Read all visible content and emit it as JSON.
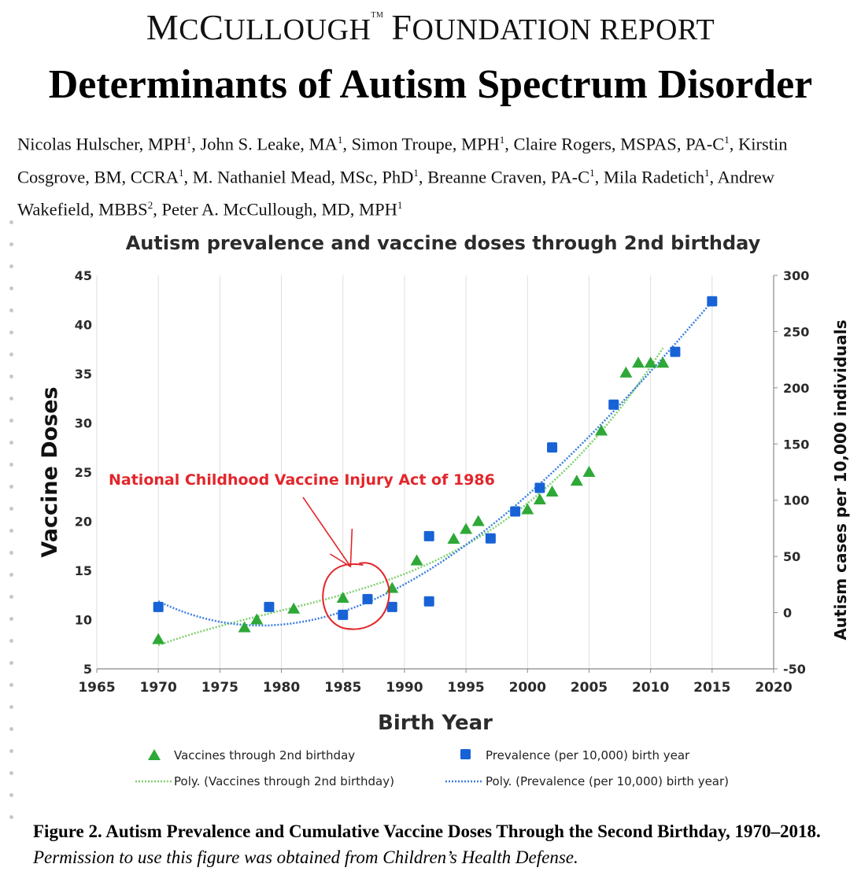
{
  "header": {
    "org_big_1": "M",
    "org_small_1": "C",
    "org_big_2": "C",
    "org_small_2": "ULLOUGH",
    "org_tm": "TM",
    "org_big_3": "F",
    "org_small_3": "OUNDATION REPORT",
    "title": "Determinants of Autism Spectrum Disorder"
  },
  "authors": [
    {
      "name": "Nicolas Hulscher, MPH",
      "sup": "1",
      "sep": ", "
    },
    {
      "name": "John S. Leake, MA",
      "sup": "1",
      "sep": ", "
    },
    {
      "name": "Simon Troupe, MPH",
      "sup": "1",
      "sep": ", "
    },
    {
      "name": "Claire Rogers, MSPAS, PA-C",
      "sup": "1",
      "sep": ", "
    },
    {
      "name": "Kirstin Cosgrove, BM, CCRA",
      "sup": "1",
      "sep": ", "
    },
    {
      "name": "M. Nathaniel Mead, MSc, PhD",
      "sup": "1",
      "sep": ", "
    },
    {
      "name": "Breanne Craven, PA-C",
      "sup": "1",
      "sep": ", "
    },
    {
      "name": "Mila Radetich",
      "sup": "1",
      "sep": ", "
    },
    {
      "name": "Andrew Wakefield, MBBS",
      "sup": "2",
      "sep": ", "
    },
    {
      "name": "Peter A. McCullough, MD, MPH",
      "sup": "1",
      "sep": ""
    }
  ],
  "caption": {
    "bold": "Figure 2. Autism Prevalence and Cumulative Vaccine Doses Through the Second Birthday, 1970–2018",
    "period": ". ",
    "italic": "Permission to use this figure was obtained from Children’s Health Defense."
  },
  "chart_data": {
    "type": "scatter",
    "title": "Autism prevalence and vaccine doses through 2nd birthday",
    "xlabel": "Birth Year",
    "ylabel_left": "Vaccine Doses",
    "ylabel_right": "Autism cases per 10,000 individuals",
    "xlim": [
      1965,
      2020
    ],
    "xticks": [
      1965,
      1970,
      1975,
      1980,
      1985,
      1990,
      1995,
      2000,
      2005,
      2010,
      2015,
      2020
    ],
    "ylim_left": [
      5,
      45
    ],
    "yticks_left": [
      5,
      10,
      15,
      20,
      25,
      30,
      35,
      40,
      45
    ],
    "ylim_right": [
      -50,
      300
    ],
    "yticks_right": [
      -50,
      0,
      50,
      100,
      150,
      200,
      250,
      300
    ],
    "grid": "vertical",
    "legend_position": "bottom",
    "series": [
      {
        "name": "Vaccines through 2nd birthday",
        "axis": "left",
        "marker": "triangle",
        "color": "#2ea836",
        "points": [
          [
            1970,
            8
          ],
          [
            1977,
            9.2
          ],
          [
            1978,
            10
          ],
          [
            1981,
            11.1
          ],
          [
            1985,
            12.2
          ],
          [
            1989,
            13.2
          ],
          [
            1991,
            16
          ],
          [
            1994,
            18.2
          ],
          [
            1995,
            19.2
          ],
          [
            1996,
            20
          ],
          [
            2000,
            21.2
          ],
          [
            2001,
            22.2
          ],
          [
            2002,
            23
          ],
          [
            2004,
            24.1
          ],
          [
            2005,
            25
          ],
          [
            2006,
            29.2
          ],
          [
            2008,
            35.1
          ],
          [
            2009,
            36.1
          ],
          [
            2010,
            36.1
          ],
          [
            2011,
            36.1
          ]
        ]
      },
      {
        "name": "Prevalence (per 10,000) birth year",
        "axis": "right",
        "marker": "square",
        "color": "#1763d6",
        "points": [
          [
            1970,
            5
          ],
          [
            1979,
            5
          ],
          [
            1985,
            -2
          ],
          [
            1987,
            12
          ],
          [
            1989,
            5
          ],
          [
            1992,
            68
          ],
          [
            1992,
            10
          ],
          [
            1997,
            66
          ],
          [
            1999,
            90
          ],
          [
            2001,
            111
          ],
          [
            2002,
            147
          ],
          [
            2007,
            185
          ],
          [
            2012,
            232
          ],
          [
            2015,
            277
          ]
        ]
      }
    ],
    "trendlines": [
      {
        "name": "Poly. (Vaccines through 2nd birthday)",
        "axis": "left",
        "color": "#7fcf6e"
      },
      {
        "name": "Poly. (Prevalence (per 10,000) birth year)",
        "axis": "right",
        "color": "#3a7fe0"
      }
    ],
    "annotation": {
      "text": "National Childhood Vaccine Injury Act of 1986",
      "color": "#e3262b",
      "year": 1986
    }
  }
}
